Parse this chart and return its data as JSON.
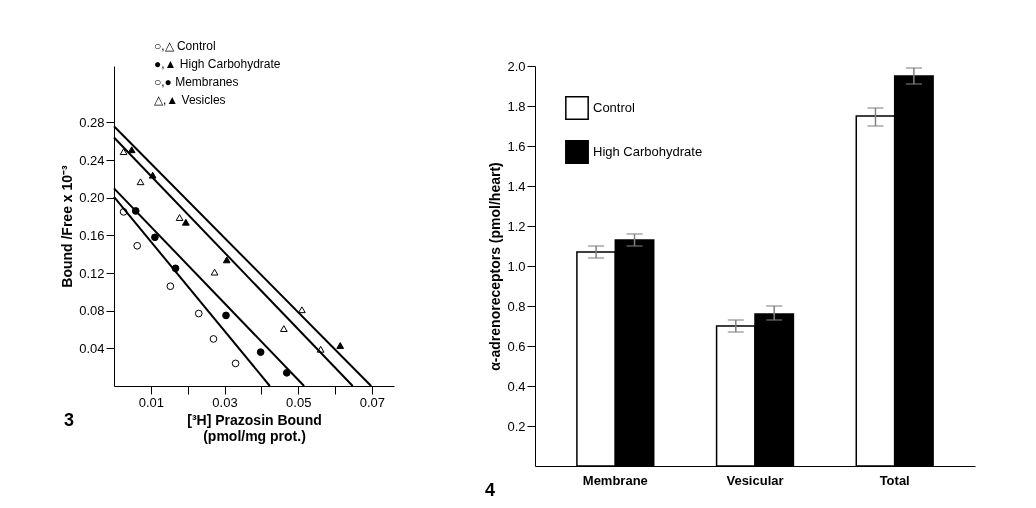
{
  "chart_data": [
    {
      "type": "scatter",
      "xlabel": "[³H] Prazosin Bound\n(pmol/mg prot.)",
      "ylabel": "Bound /Free x 10⁻³",
      "xlim": [
        0,
        0.076
      ],
      "ylim": [
        0,
        0.34
      ],
      "xticks": [
        0.01,
        {
          "value": 0.02,
          "label": null
        },
        0.03,
        {
          "value": 0.04,
          "label": null
        },
        0.05,
        {
          "value": 0.06,
          "label": null
        },
        0.07
      ],
      "yticks": [
        0.04,
        0.08,
        0.12,
        0.16,
        {
          "value": 0.2,
          "label": "0.20"
        },
        0.24,
        0.28
      ],
      "grid": false,
      "line_style": "solid",
      "annotations": [
        "○,△ Control",
        "●,▲ High Carbohydrate",
        "○,● Membranes",
        "△,▲ Vesicles",
        "3"
      ],
      "series": [
        {
          "type": "scatter",
          "marker": "circle",
          "color": "#ffffff",
          "x": [
            0.0026,
            0.0063,
            0.0153,
            0.023,
            0.027,
            0.033
          ],
          "values": [
            0.185,
            0.149,
            0.106,
            0.077,
            0.05,
            0.024
          ]
        },
        {
          "type": "scatter",
          "marker": "circle",
          "color": "#000000",
          "x": [
            0.0059,
            0.0111,
            0.0167,
            0.0304,
            0.0398,
            0.0469
          ],
          "values": [
            0.186,
            0.158,
            0.125,
            0.075,
            0.036,
            0.014
          ]
        },
        {
          "type": "scatter",
          "marker": "triangle",
          "color": "#ffffff",
          "x": [
            0.0026,
            0.0072,
            0.0178,
            0.0273,
            0.051,
            0.0461,
            0.0561
          ],
          "values": [
            0.249,
            0.217,
            0.179,
            0.121,
            0.081,
            0.061,
            0.039
          ]
        },
        {
          "type": "scatter",
          "marker": "triangle",
          "color": "#000000",
          "x": [
            0.0048,
            0.0105,
            0.0195,
            0.0306,
            0.0614
          ],
          "values": [
            0.251,
            0.224,
            0.174,
            0.134,
            0.043
          ]
        },
        {
          "type": "line",
          "color": "#000000",
          "x": [
            0,
            0.0423
          ],
          "values": [
            0.201,
            0
          ]
        },
        {
          "type": "line",
          "color": "#000000",
          "x": [
            0,
            0.0516
          ],
          "values": [
            0.21,
            0
          ]
        },
        {
          "type": "line",
          "color": "#000000",
          "x": [
            0,
            0.0648
          ],
          "values": [
            0.264,
            0
          ]
        },
        {
          "type": "line",
          "color": "#000000",
          "x": [
            0,
            0.0698
          ],
          "values": [
            0.276,
            0
          ]
        }
      ]
    },
    {
      "type": "bar",
      "ylabel": "α-adrenoreceptors (pmol/heart)",
      "categories": [
        "Membrane",
        "Vesicular",
        "Total"
      ],
      "ylim": [
        0,
        2
      ],
      "yticks": [
        0.2,
        0.4,
        0.6,
        0.8,
        {
          "value": 1,
          "label": "1.0"
        },
        1.2,
        1.4,
        1.6,
        1.8,
        {
          "value": 2,
          "label": "2.0"
        }
      ],
      "grid": false,
      "legend": "top left",
      "annotations": [
        "4"
      ],
      "series": [
        {
          "name": "Control",
          "color": "#ffffff",
          "values": [
            1.07,
            0.7,
            1.75
          ],
          "errors": [
            [
              1.04,
              1.1
            ],
            [
              0.67,
              0.73
            ],
            [
              1.7,
              1.79
            ]
          ]
        },
        {
          "name": "High Carbohydrate",
          "color": "#000000",
          "values": [
            1.13,
            0.76,
            1.95
          ],
          "errors": [
            [
              1.1,
              1.16
            ],
            [
              0.73,
              0.8
            ],
            [
              1.91,
              1.99
            ]
          ]
        }
      ]
    }
  ]
}
